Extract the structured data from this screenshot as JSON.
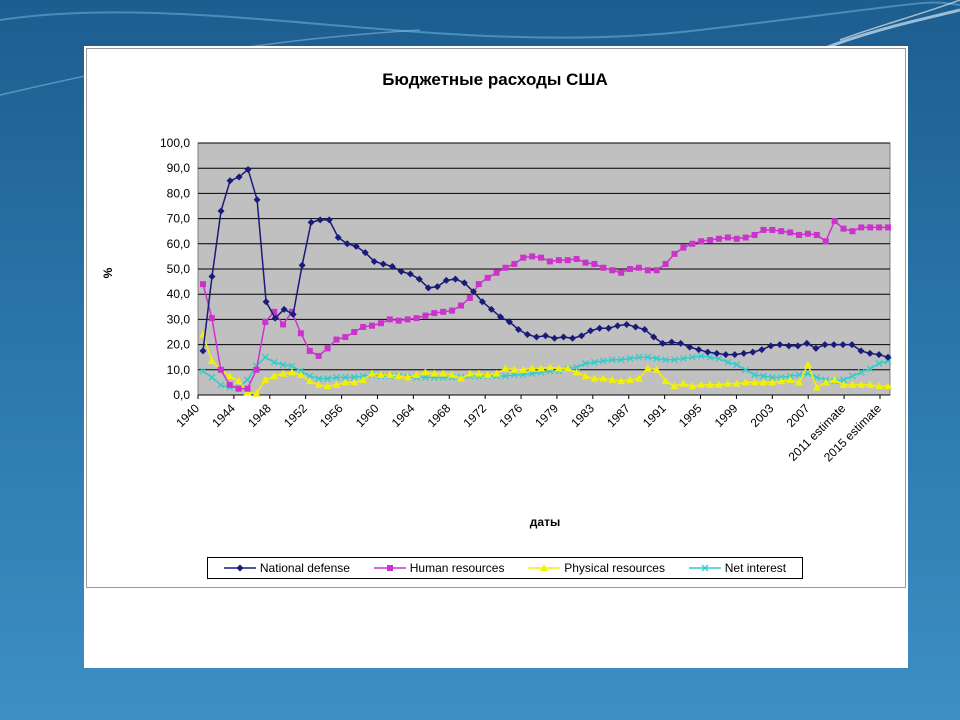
{
  "slide": {
    "background": "#2a75a8"
  },
  "chart_data": {
    "type": "line",
    "title": "Бюджетные расходы США",
    "xlabel": "даты",
    "ylabel": "%",
    "ylim": [
      0,
      100
    ],
    "y_ticks": [
      "0,0",
      "10,0",
      "20,0",
      "30,0",
      "40,0",
      "50,0",
      "60,0",
      "70,0",
      "80,0",
      "90,0",
      "100,0"
    ],
    "x_tick_labels": [
      "1940",
      "1944",
      "1948",
      "1952",
      "1956",
      "1960",
      "1964",
      "1968",
      "1972",
      "1976",
      "1979",
      "1983",
      "1987",
      "1991",
      "1995",
      "1999",
      "2003",
      "2007",
      "2011 estimate",
      "2015 estimate"
    ],
    "plot_background": "#c0c0c0",
    "grid": true,
    "legend_position": "bottom",
    "series": [
      {
        "name": "National defense",
        "color": "#1a1a7a",
        "marker": "diamond",
        "values": [
          17.5,
          47,
          73,
          85,
          86.5,
          89.5,
          77.5,
          37,
          30.5,
          34,
          32,
          51.5,
          68.5,
          69.5,
          69.5,
          62.5,
          60,
          59,
          56.5,
          53,
          52,
          51,
          49,
          48,
          46,
          42.5,
          43,
          45.5,
          46,
          44.5,
          41,
          37,
          34,
          31,
          29,
          26,
          24,
          23,
          23.5,
          22.5,
          23,
          22.5,
          23.5,
          25.5,
          26.5,
          26.5,
          27.5,
          28,
          27,
          26,
          23,
          20.5,
          21,
          20.5,
          19,
          18,
          17,
          16.5,
          16,
          16,
          16.5,
          17,
          18,
          19.5,
          20,
          19.5,
          19.5,
          20.5,
          18.5,
          20,
          20,
          20,
          20,
          17.5,
          16.5,
          16,
          15
        ]
      },
      {
        "name": "Human resources",
        "color": "#cc33cc",
        "marker": "square",
        "values": [
          44,
          30.5,
          10,
          4,
          2.5,
          2.5,
          10,
          29,
          33,
          28,
          33,
          24.5,
          17.5,
          15.5,
          18.5,
          22,
          23,
          25,
          27,
          27.5,
          28.5,
          30,
          29.5,
          30,
          30.5,
          31.5,
          32.5,
          33,
          33.5,
          35.5,
          38.5,
          44,
          46.5,
          48.5,
          50.5,
          52,
          54.5,
          55,
          54.5,
          53,
          53.5,
          53.5,
          54,
          52.5,
          52,
          50.5,
          49.5,
          48.5,
          50,
          50.5,
          49.5,
          49.5,
          52,
          56,
          58.5,
          60,
          61,
          61.5,
          62,
          62.5,
          62,
          62.5,
          63.5,
          65.5,
          65.5,
          65,
          64.5,
          63.5,
          64,
          63.5,
          61,
          69,
          66,
          65,
          66.5,
          66.5,
          66.5,
          66.5
        ]
      },
      {
        "name": "Physical resources",
        "color": "#f2f200",
        "marker": "triangle",
        "values": [
          24,
          13.5,
          10,
          7.5,
          5.5,
          1,
          0.5,
          6,
          7.5,
          8.5,
          9,
          8,
          5.5,
          4,
          3.5,
          4,
          5,
          5,
          6,
          8.5,
          8,
          8,
          7.5,
          7,
          8,
          9,
          8.5,
          8.5,
          8,
          6.5,
          8.5,
          8.5,
          8,
          8.5,
          10.5,
          10,
          10,
          10.5,
          10.5,
          11,
          10.5,
          10.5,
          9,
          7.5,
          6.5,
          6.5,
          6,
          5.5,
          6,
          6.5,
          10.5,
          10,
          5.5,
          3.5,
          4.5,
          3.5,
          4,
          4,
          4,
          4.5,
          4.5,
          5,
          5,
          5,
          5,
          5.5,
          6,
          5,
          12,
          3,
          5,
          6,
          4,
          4,
          4,
          4,
          3.5,
          3.5
        ]
      },
      {
        "name": "Net interest",
        "color": "#33cccc",
        "marker": "cross",
        "values": [
          9.5,
          7,
          4,
          3,
          3,
          6,
          11.5,
          15,
          13,
          12,
          11.5,
          9.5,
          7.5,
          6.5,
          6.5,
          7,
          7,
          7,
          7.5,
          8,
          7.5,
          7.5,
          7.5,
          7,
          7,
          7,
          7,
          7,
          7,
          7,
          7.5,
          7.5,
          7.5,
          7.5,
          7.5,
          8,
          8,
          8.5,
          9,
          9.5,
          9.5,
          10.5,
          11,
          12.5,
          13,
          13.5,
          14,
          14,
          14.5,
          15,
          15,
          14.5,
          14,
          14,
          14.5,
          15,
          15.5,
          15,
          14.5,
          13,
          12,
          10,
          8,
          7.5,
          7,
          7,
          7.5,
          8,
          8.5,
          7,
          6,
          5.5,
          6,
          7.5,
          9,
          10.5,
          12.5,
          13.5
        ]
      }
    ]
  }
}
